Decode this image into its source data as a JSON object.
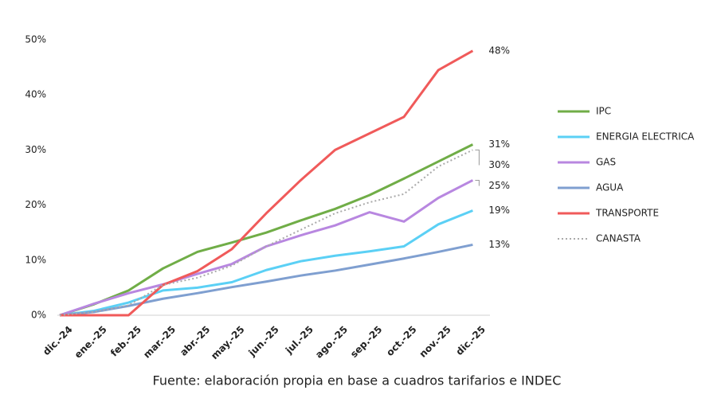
{
  "chart_data": {
    "type": "line",
    "source": "Fuente: elaboración propia en base a cuadros tarifarios e INDEC",
    "categories": [
      "dic.-24",
      "ene.-25",
      "feb.-25",
      "mar.-25",
      "abr.-25",
      "may.-25",
      "jun.-25",
      "jul.-25",
      "ago.-25",
      "sep.-25",
      "oct.-25",
      "nov.-25",
      "dic.-25"
    ],
    "ylim": [
      0,
      50
    ],
    "yticks": [
      {
        "value": 0,
        "label": "0%"
      },
      {
        "value": 10,
        "label": "10%"
      },
      {
        "value": 20,
        "label": "20%"
      },
      {
        "value": 30,
        "label": "30%"
      },
      {
        "value": 40,
        "label": "40%"
      },
      {
        "value": 50,
        "label": "50%"
      }
    ],
    "legend": "right",
    "series": [
      {
        "name": "IPC",
        "color": "#70ad47",
        "dash": "solid",
        "values": [
          0,
          2,
          4.5,
          8.5,
          11.5,
          13.2,
          15,
          17.2,
          19.3,
          21.8,
          24.8,
          27.9,
          31
        ],
        "value_labels": [
          null,
          null,
          null,
          null,
          null,
          null,
          null,
          null,
          null,
          null,
          null,
          null,
          "31%"
        ]
      },
      {
        "name": "ENERGIA ELECTRICA",
        "color": "#5bd0f5",
        "dash": "solid",
        "values": [
          0,
          0.8,
          2.3,
          4.5,
          5,
          6,
          8.2,
          9.8,
          10.8,
          11.6,
          12.5,
          16.5,
          19
        ],
        "value_labels": [
          null,
          null,
          null,
          null,
          null,
          null,
          null,
          null,
          null,
          null,
          null,
          null,
          "19%"
        ]
      },
      {
        "name": "GAS",
        "color": "#b887e0",
        "dash": "solid",
        "values": [
          0,
          2.1,
          4,
          5.6,
          7.5,
          9.3,
          12.5,
          14.5,
          16.3,
          18.7,
          17,
          21.3,
          24.5
        ],
        "value_labels": [
          null,
          null,
          null,
          null,
          null,
          null,
          null,
          null,
          null,
          null,
          null,
          null,
          "25%"
        ]
      },
      {
        "name": "AGUA",
        "color": "#7f9fd0",
        "dash": "solid",
        "values": [
          0,
          0.6,
          1.7,
          3,
          4,
          5.1,
          6.1,
          7.2,
          8.1,
          9.2,
          10.3,
          11.5,
          12.8
        ],
        "value_labels": [
          null,
          null,
          null,
          null,
          null,
          null,
          null,
          null,
          null,
          null,
          null,
          null,
          "13%"
        ]
      },
      {
        "name": "TRANSPORTE",
        "color": "#f05a5a",
        "dash": "solid",
        "values": [
          0,
          0,
          0,
          5.5,
          8,
          12,
          18.5,
          24.5,
          30,
          33,
          36,
          44.5,
          48
        ],
        "value_labels": [
          null,
          null,
          null,
          null,
          null,
          null,
          null,
          null,
          null,
          null,
          null,
          null,
          "48%"
        ]
      },
      {
        "name": "CANASTA",
        "color": "#aaaaaa",
        "dash": "dotted",
        "values": [
          0,
          0.6,
          1.8,
          5.5,
          6.8,
          9,
          12.5,
          15.5,
          18.5,
          20.5,
          22,
          27,
          30
        ],
        "value_labels": [
          null,
          null,
          null,
          null,
          null,
          null,
          null,
          null,
          null,
          null,
          null,
          null,
          "30%"
        ]
      }
    ]
  }
}
